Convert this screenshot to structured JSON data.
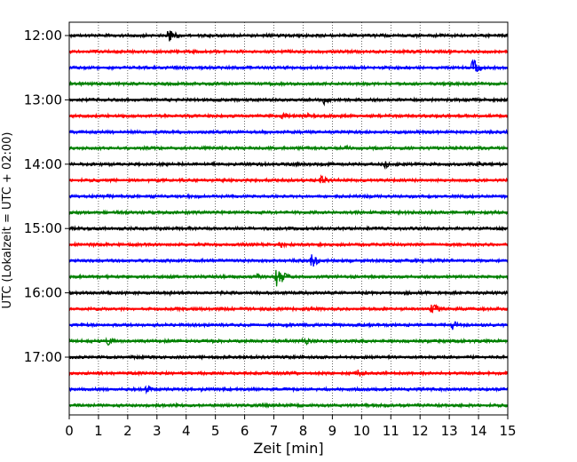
{
  "chart_data": {
    "type": "line",
    "xlabel": "Zeit  [min]",
    "ylabel": "UTC (Lokalzeit = UTC + 02:00)",
    "xlim": [
      0,
      15
    ],
    "x_ticks": [
      0,
      1,
      2,
      3,
      4,
      5,
      6,
      7,
      8,
      9,
      10,
      11,
      12,
      13,
      14,
      15
    ],
    "ytick_labels": [
      "12:00",
      "13:00",
      "14:00",
      "15:00",
      "16:00",
      "17:00"
    ],
    "ytick_rows": [
      0,
      4,
      8,
      12,
      16,
      20
    ],
    "vertical_grid": true,
    "grid_style": "dotted",
    "colors": [
      "#000000",
      "#ff0000",
      "#0000ff",
      "#008000"
    ],
    "rows": [
      {
        "time": "12:00",
        "color": "black",
        "events": [
          [
            3.4,
            9
          ]
        ]
      },
      {
        "time": "12:15",
        "color": "red",
        "events": []
      },
      {
        "time": "12:30",
        "color": "blue",
        "events": [
          [
            13.8,
            11
          ]
        ]
      },
      {
        "time": "12:45",
        "color": "green",
        "events": []
      },
      {
        "time": "13:00",
        "color": "black",
        "events": [
          [
            8.7,
            6
          ]
        ]
      },
      {
        "time": "13:15",
        "color": "red",
        "events": [
          [
            7.3,
            5
          ],
          [
            8.1,
            4
          ]
        ]
      },
      {
        "time": "13:30",
        "color": "blue",
        "events": []
      },
      {
        "time": "13:45",
        "color": "green",
        "events": [
          [
            9.5,
            3
          ]
        ]
      },
      {
        "time": "14:00",
        "color": "black",
        "events": [
          [
            10.8,
            5
          ],
          [
            14.0,
            4
          ]
        ]
      },
      {
        "time": "14:15",
        "color": "red",
        "events": [
          [
            8.6,
            6
          ]
        ]
      },
      {
        "time": "14:30",
        "color": "blue",
        "events": [
          [
            1.3,
            3
          ]
        ]
      },
      {
        "time": "14:45",
        "color": "green",
        "events": [
          [
            5.4,
            3
          ]
        ]
      },
      {
        "time": "15:00",
        "color": "black",
        "events": []
      },
      {
        "time": "15:15",
        "color": "red",
        "events": [
          [
            7.2,
            4
          ]
        ]
      },
      {
        "time": "15:30",
        "color": "blue",
        "events": [
          [
            8.3,
            9
          ]
        ]
      },
      {
        "time": "15:45",
        "color": "green",
        "events": [
          [
            6.4,
            4
          ],
          [
            7.1,
            13
          ]
        ]
      },
      {
        "time": "16:00",
        "color": "black",
        "events": [
          [
            3.4,
            3
          ],
          [
            11.6,
            3
          ]
        ]
      },
      {
        "time": "16:15",
        "color": "red",
        "events": [
          [
            12.4,
            7
          ]
        ]
      },
      {
        "time": "16:30",
        "color": "blue",
        "events": [
          [
            13.1,
            6
          ]
        ]
      },
      {
        "time": "16:45",
        "color": "green",
        "events": [
          [
            1.3,
            5
          ],
          [
            8.0,
            6
          ]
        ]
      },
      {
        "time": "17:00",
        "color": "black",
        "events": [
          [
            12.8,
            3
          ]
        ]
      },
      {
        "time": "17:15",
        "color": "red",
        "events": [
          [
            9.9,
            6
          ]
        ]
      },
      {
        "time": "17:30",
        "color": "blue",
        "events": [
          [
            2.6,
            6
          ],
          [
            4.5,
            3
          ]
        ]
      },
      {
        "time": "17:45",
        "color": "green",
        "events": []
      }
    ]
  }
}
